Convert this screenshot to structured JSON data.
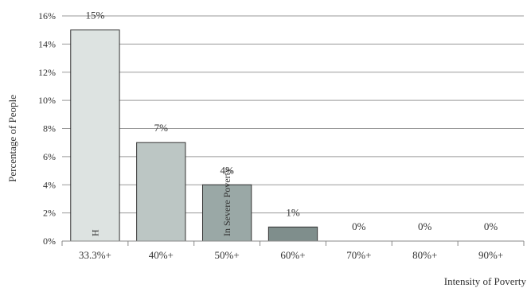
{
  "chart_data": {
    "type": "bar",
    "categories": [
      "33.3%+",
      "40%+",
      "50%+",
      "60%+",
      "70%+",
      "80%+",
      "90%+"
    ],
    "values": [
      15,
      7,
      4,
      1,
      0,
      0,
      0
    ],
    "data_labels": [
      "15%",
      "7%",
      "4%",
      "1%",
      "0%",
      "0%",
      "0%"
    ],
    "bar_colors": [
      "#dde3e1",
      "#bcc6c4",
      "#9aa8a6",
      "#7f8e8c",
      "#6f7e7c",
      "#6f7e7c",
      "#6f7e7c"
    ],
    "ylabel": "Percentage of  People",
    "xlabel": "Intensity of Poverty",
    "ylim": [
      0,
      16
    ],
    "yticks": [
      0,
      2,
      4,
      6,
      8,
      10,
      12,
      14,
      16
    ],
    "ytick_labels": [
      "0%",
      "2%",
      "4%",
      "6%",
      "8%",
      "10%",
      "12%",
      "14%",
      "16%"
    ],
    "grid": true,
    "bar_annotations": [
      {
        "category": "33.3%+",
        "text": "H"
      },
      {
        "category": "50%+",
        "text": "In Severe Poverty"
      }
    ]
  }
}
